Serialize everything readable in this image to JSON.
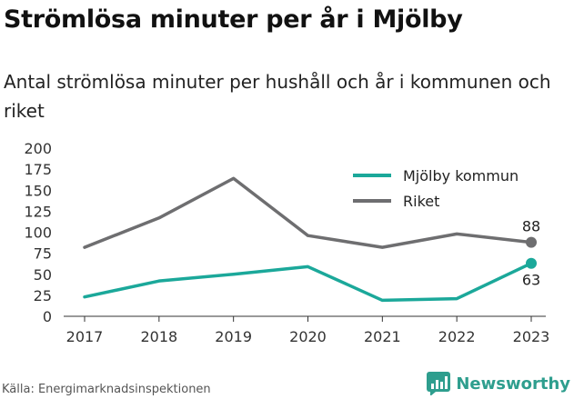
{
  "title": "Strömlösa minuter per år i Mjölby",
  "subtitle": "Antal strömlösa minuter per hushåll och år i kommunen och riket",
  "source": "Källa: Energimarknadsinspektionen",
  "brand": {
    "name": "Newsworthy",
    "icon": "newsworthy-logo-icon",
    "color": "#2e9e8e"
  },
  "chart_data": {
    "type": "line",
    "title": "Strömlösa minuter per år i Mjölby",
    "subtitle": "Antal strömlösa minuter per hushåll och år i kommunen och riket",
    "x": [
      "2017",
      "2018",
      "2019",
      "2020",
      "2021",
      "2022",
      "2023"
    ],
    "yticks": [
      "0",
      "25",
      "50",
      "75",
      "100",
      "125",
      "150",
      "175",
      "200"
    ],
    "ylim": [
      0,
      200
    ],
    "grid": false,
    "legend_position": "top-right",
    "series": [
      {
        "name": "Mjölby kommun",
        "color": "#1ba89a",
        "values": [
          23,
          42,
          50,
          59,
          19,
          21,
          63
        ],
        "end_label": "63"
      },
      {
        "name": "Riket",
        "color": "#6e6e70",
        "values": [
          82,
          117,
          164,
          96,
          82,
          98,
          88
        ],
        "end_label": "88"
      }
    ]
  }
}
